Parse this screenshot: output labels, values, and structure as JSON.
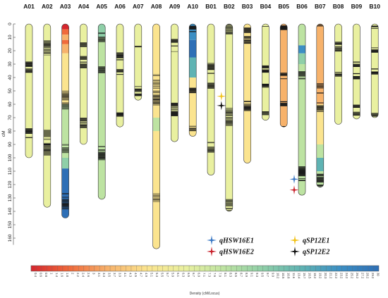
{
  "chart_data": {
    "type": "linkage-map",
    "ylabel": "cM",
    "ylim": [
      0,
      170
    ],
    "y_ticks": [
      0,
      10,
      20,
      30,
      40,
      50,
      60,
      70,
      80,
      90,
      100,
      110,
      120,
      130,
      140,
      150,
      160
    ],
    "colorbar": {
      "title": "Density (cM/Locus)",
      "labels": [
        "0.4",
        "0.6",
        "0.8",
        "1",
        "1.4",
        "1.6",
        "1.8",
        "2",
        "2.2",
        "2.4",
        "2.6",
        "3",
        "3.1",
        "3.3",
        "3.5",
        "3.7",
        "3.9",
        "4.1",
        "4.3",
        "4.5",
        "4.7",
        "4.9",
        "5.1",
        "5.3",
        "5.5",
        "5.7",
        "5.9",
        "6.1",
        "6.3",
        "6.5",
        "6.7",
        "6.9",
        "7.1",
        "7.3",
        "7.6",
        "7.9",
        "8.1",
        "8.3",
        "8.5",
        "8.7",
        "8.9",
        "9.1",
        "9.3",
        "9.5",
        "9.7",
        "9.9",
        "10.2",
        "10.5",
        "10.8",
        "11.6",
        "13.4",
        "15.7",
        "16.5",
        "18.2",
        "19.2",
        "20.3",
        "21.2",
        "22.2",
        "23.2",
        "24.2",
        "25.2",
        "26.2",
        "27.2",
        "28.2",
        "29.2",
        "30"
      ],
      "colors": [
        "#d6262d",
        "#f06a3c",
        "#f7b26b",
        "#fbe48f",
        "#e9f0a0",
        "#bde3a2",
        "#8fcfa8",
        "#5fb3b3",
        "#3c8fc4",
        "#2e6fb6"
      ]
    },
    "chromosomes": [
      {
        "name": "A01",
        "length": 100
      },
      {
        "name": "A02",
        "length": 137
      },
      {
        "name": "A03",
        "length": 145
      },
      {
        "name": "A04",
        "length": 90
      },
      {
        "name": "A05",
        "length": 131
      },
      {
        "name": "A06",
        "length": 77
      },
      {
        "name": "A07",
        "length": 57
      },
      {
        "name": "A08",
        "length": 168
      },
      {
        "name": "A09",
        "length": 88
      },
      {
        "name": "A10",
        "length": 84
      },
      {
        "name": "B01",
        "length": 113
      },
      {
        "name": "B02",
        "length": 140
      },
      {
        "name": "B03",
        "length": 104
      },
      {
        "name": "B04",
        "length": 72
      },
      {
        "name": "B05",
        "length": 77
      },
      {
        "name": "B06",
        "length": 128
      },
      {
        "name": "B07",
        "length": 122
      },
      {
        "name": "B08",
        "length": 75
      },
      {
        "name": "B09",
        "length": 71
      },
      {
        "name": "B10",
        "length": 70
      }
    ],
    "qtls": [
      {
        "name": "qHSW16E1",
        "chromosome": "B06",
        "position": 116,
        "color": "#3b78c4"
      },
      {
        "name": "qHSW16E2",
        "chromosome": "B06",
        "position": 124,
        "color": "#c8202a"
      },
      {
        "name": "qSP12E1",
        "chromosome": "B02",
        "position": 54,
        "color": "#f2c218"
      },
      {
        "name": "qSP12E2",
        "chromosome": "B02",
        "position": 61,
        "color": "#111111"
      }
    ],
    "legend": [
      {
        "name": "qHSW16E1",
        "color": "#3b78c4"
      },
      {
        "name": "qSP12E1",
        "color": "#f2c218"
      },
      {
        "name": "qHSW16E2",
        "color": "#c8202a"
      },
      {
        "name": "qSP12E2",
        "color": "#111111"
      }
    ]
  }
}
